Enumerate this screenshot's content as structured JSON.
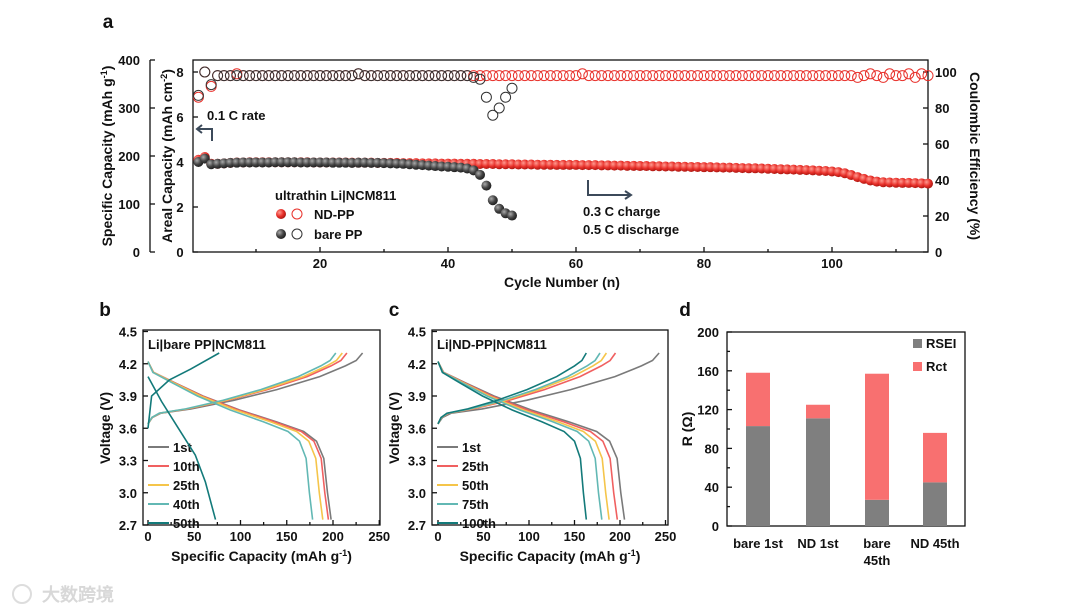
{
  "watermark": "大数跨境",
  "chart_data": [
    {
      "panel": "a",
      "type": "scatter",
      "xlabel": "Cycle Number (n)",
      "ylabel_outer": "Specific Capacity (mAh g-1)",
      "ylabel_inner": "Areal Capacity (mAh cm-2)",
      "ylabel_right": "Coulombic Efficiency (%)",
      "xlim": [
        0,
        115
      ],
      "xticks": [
        "20",
        "40",
        "60",
        "80",
        "100"
      ],
      "xtick_values": [
        20,
        40,
        60,
        80,
        100
      ],
      "yticks_outer": [
        "0",
        "100",
        "200",
        "300",
        "400"
      ],
      "yticks_inner": [
        "0",
        "2",
        "4",
        "6",
        "8"
      ],
      "yticks_right": [
        "0",
        "20",
        "40",
        "60",
        "80",
        "100"
      ],
      "ylim_inner": [
        0,
        8.5
      ],
      "ylim_right": [
        0,
        106
      ],
      "legend_title": "ultrathin Li|NCM811",
      "annotations": {
        "rate1": "0.1 C rate",
        "rate2_line1": "0.3 C charge",
        "rate2_line2": "0.5 C discharge"
      },
      "series": [
        {
          "name": "ND-PP",
          "color": "#e8302a",
          "capacity": [
            4.1,
            4.22,
            3.92,
            3.92,
            3.94,
            3.96,
            3.98,
            3.98,
            3.99,
            3.99,
            3.99,
            3.99,
            3.99,
            3.99,
            3.99,
            3.99,
            3.99,
            3.99,
            3.98,
            3.98,
            3.98,
            3.98,
            3.98,
            3.98,
            3.97,
            3.97,
            3.97,
            3.97,
            3.96,
            3.96,
            3.96,
            3.96,
            3.95,
            3.95,
            3.95,
            3.94,
            3.94,
            3.94,
            3.93,
            3.93,
            3.93,
            3.92,
            3.92,
            3.92,
            3.91,
            3.91,
            3.91,
            3.9,
            3.9,
            3.9,
            3.89,
            3.89,
            3.89,
            3.88,
            3.88,
            3.88,
            3.87,
            3.87,
            3.87,
            3.87,
            3.86,
            3.86,
            3.86,
            3.85,
            3.85,
            3.84,
            3.84,
            3.83,
            3.83,
            3.82,
            3.82,
            3.81,
            3.81,
            3.8,
            3.8,
            3.79,
            3.79,
            3.78,
            3.78,
            3.77,
            3.77,
            3.76,
            3.75,
            3.75,
            3.74,
            3.73,
            3.72,
            3.72,
            3.71,
            3.7,
            3.69,
            3.68,
            3.67,
            3.66,
            3.65,
            3.64,
            3.63,
            3.61,
            3.6,
            3.58,
            3.55,
            3.5,
            3.42,
            3.33,
            3.25,
            3.18,
            3.13,
            3.1,
            3.09,
            3.08,
            3.07,
            3.07,
            3.06,
            3.05,
            3.04
          ],
          "ce": [
            86,
            100,
            92,
            98,
            98,
            98,
            99,
            98,
            98,
            98,
            98,
            98,
            98,
            98,
            98,
            98,
            98,
            98,
            98,
            98,
            98,
            98,
            98,
            98,
            98,
            99,
            98,
            98,
            98,
            98,
            98,
            98,
            98,
            98,
            98,
            98,
            98,
            98,
            98,
            98,
            98,
            98,
            98,
            98,
            98,
            98,
            98,
            98,
            98,
            98,
            98,
            98,
            98,
            98,
            98,
            98,
            98,
            98,
            98,
            98,
            99,
            98,
            98,
            98,
            98,
            98,
            98,
            98,
            98,
            98,
            98,
            98,
            98,
            98,
            98,
            98,
            98,
            98,
            98,
            98,
            98,
            98,
            98,
            98,
            98,
            98,
            98,
            98,
            98,
            98,
            98,
            98,
            98,
            98,
            98,
            98,
            98,
            98,
            98,
            98,
            98,
            98,
            98,
            97,
            98,
            99,
            98,
            97,
            99,
            98,
            98,
            99,
            97,
            99,
            98
          ]
        },
        {
          "name": "bare PP",
          "color": "#444444",
          "capacity": [
            4.0,
            4.15,
            3.9,
            3.92,
            3.94,
            3.96,
            3.97,
            3.98,
            3.98,
            3.98,
            3.98,
            3.98,
            3.99,
            3.99,
            3.99,
            3.99,
            3.98,
            3.98,
            3.98,
            3.98,
            3.98,
            3.97,
            3.97,
            3.97,
            3.96,
            3.97,
            3.97,
            3.96,
            3.96,
            3.95,
            3.94,
            3.93,
            3.92,
            3.9,
            3.88,
            3.86,
            3.84,
            3.82,
            3.8,
            3.79,
            3.77,
            3.75,
            3.71,
            3.63,
            3.43,
            2.95,
            2.3,
            1.92,
            1.72,
            1.62
          ],
          "ce": [
            87,
            100,
            93,
            98,
            98,
            98,
            98,
            98,
            98,
            98,
            98,
            98,
            98,
            98,
            98,
            98,
            98,
            98,
            98,
            98,
            98,
            98,
            98,
            98,
            98,
            99,
            98,
            98,
            98,
            98,
            98,
            98,
            98,
            98,
            98,
            98,
            98,
            98,
            98,
            98,
            98,
            98,
            98,
            97,
            96,
            86,
            76,
            80,
            86,
            91
          ]
        }
      ]
    },
    {
      "panel": "b",
      "type": "line",
      "title": "Li|bare PP|NCM811",
      "xlabel": "Specific Capacity (mAh g-1)",
      "ylabel": "Voltage (V)",
      "xlim": [
        0,
        250
      ],
      "ylim": [
        2.7,
        4.5
      ],
      "xticks": [
        "0",
        "50",
        "100",
        "150",
        "200",
        "250"
      ],
      "yticks": [
        "2.7",
        "3.0",
        "3.3",
        "3.6",
        "3.9",
        "4.2",
        "4.5"
      ],
      "series": [
        {
          "name": "1st",
          "color": "#7a7a7a",
          "charge_capacity": 232,
          "discharge_capacity": 198
        },
        {
          "name": "10th",
          "color": "#f06060",
          "charge_capacity": 215,
          "discharge_capacity": 195
        },
        {
          "name": "25th",
          "color": "#f5c54a",
          "charge_capacity": 210,
          "discharge_capacity": 189
        },
        {
          "name": "40th",
          "color": "#62b8b4",
          "charge_capacity": 203,
          "discharge_capacity": 178
        },
        {
          "name": "50th",
          "color": "#137a7a",
          "charge_capacity": 77,
          "discharge_capacity": 73
        }
      ]
    },
    {
      "panel": "c",
      "type": "line",
      "title": "Li|ND-PP|NCM811",
      "xlabel": "Specific Capacity (mAh g-1)",
      "ylabel": "Voltage (V)",
      "xlim": [
        0,
        250
      ],
      "ylim": [
        2.7,
        4.5
      ],
      "xticks": [
        "0",
        "50",
        "100",
        "150",
        "200",
        "250"
      ],
      "yticks": [
        "2.7",
        "3.0",
        "3.3",
        "3.6",
        "3.9",
        "4.2",
        "4.5"
      ],
      "series": [
        {
          "name": "1st",
          "color": "#7a7a7a",
          "charge_capacity": 243,
          "discharge_capacity": 205
        },
        {
          "name": "25th",
          "color": "#f06060",
          "charge_capacity": 195,
          "discharge_capacity": 197
        },
        {
          "name": "50th",
          "color": "#f5c54a",
          "charge_capacity": 185,
          "discharge_capacity": 188
        },
        {
          "name": "75th",
          "color": "#62b8b4",
          "charge_capacity": 178,
          "discharge_capacity": 180
        },
        {
          "name": "100th",
          "color": "#137a7a",
          "charge_capacity": 163,
          "discharge_capacity": 163
        }
      ]
    },
    {
      "panel": "d",
      "type": "bar",
      "stacked": true,
      "ylabel": "R (Ω)",
      "ylim": [
        0,
        200
      ],
      "yticks": [
        "0",
        "40",
        "80",
        "120",
        "160",
        "200"
      ],
      "categories": [
        "bare 1st",
        "ND 1st",
        "bare 45th",
        "ND 45th"
      ],
      "series": [
        {
          "name": "RSEI",
          "color": "#7f7f7f",
          "values": [
            103,
            111,
            27,
            45
          ]
        },
        {
          "name": "Rct",
          "color": "#f87070",
          "values": [
            55,
            14,
            130,
            51
          ]
        }
      ]
    }
  ]
}
